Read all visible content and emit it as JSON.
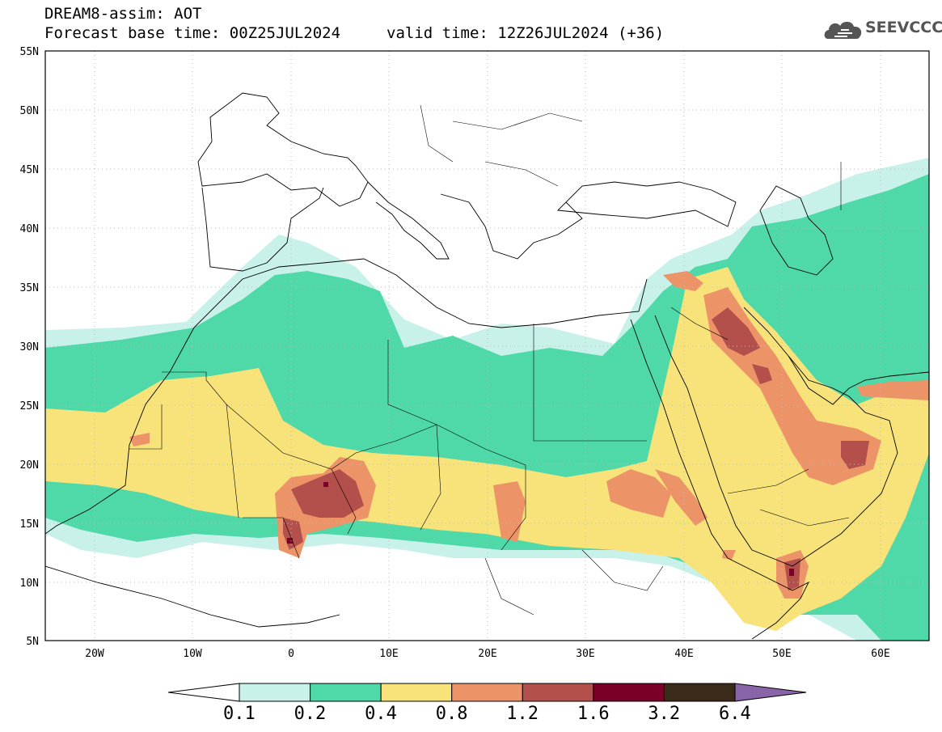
{
  "header": {
    "title_line1": "DREAM8-assim: AOT",
    "title_line2": "Forecast base time: 00Z25JUL2024",
    "valid_time": "valid time: 12Z26JUL2024 (+36)"
  },
  "logo": {
    "text": "SEEVCCC",
    "icon": "cloud-logo-icon"
  },
  "map": {
    "lat_labels": [
      "55N",
      "50N",
      "45N",
      "40N",
      "35N",
      "30N",
      "25N",
      "20N",
      "15N",
      "10N",
      "5N"
    ],
    "lon_labels": [
      "20W",
      "10W",
      "0",
      "10E",
      "20E",
      "30E",
      "40E",
      "50E",
      "60E"
    ],
    "lat_range": [
      5,
      55
    ],
    "lon_range": [
      -25,
      65
    ],
    "grid": "dotted"
  },
  "colorbar": {
    "labels": [
      "0.1",
      "0.2",
      "0.4",
      "0.8",
      "1.2",
      "1.6",
      "3.2",
      "6.4"
    ],
    "colors": [
      "#ffffff",
      "#c8f1ea",
      "#4fd8a8",
      "#f7e37a",
      "#ec9468",
      "#b4504c",
      "#7a0028",
      "#3a2a1a",
      "#8a64a8"
    ]
  },
  "colors": {
    "c1": "#c8f1ea",
    "c2": "#4fd8a8",
    "c3": "#f7e37a",
    "c4": "#ec9468",
    "c5": "#b4504c",
    "c6": "#7a0028"
  }
}
